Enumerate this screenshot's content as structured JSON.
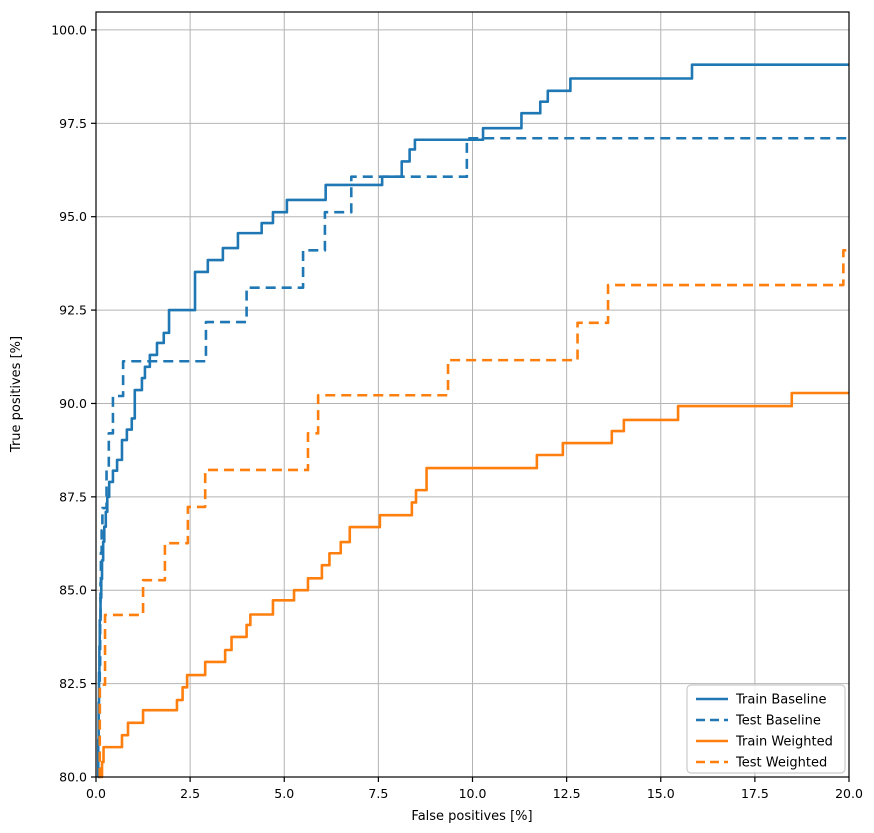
{
  "chart_data": {
    "type": "line",
    "subtype": "step-after-roc-curves",
    "title": "",
    "xlabel": "False positives [%]",
    "ylabel": "True positives [%]",
    "xlim": [
      0,
      20
    ],
    "ylim": [
      80,
      100.48
    ],
    "grid": true,
    "grid_color": "#b4b4b4",
    "spine_color": "#000000",
    "legend_position": "lower right",
    "xtick_values": [
      0,
      2.5,
      5,
      7.5,
      10,
      12.5,
      15,
      17.5,
      20
    ],
    "xtick_labels": [
      "0.0",
      "2.5",
      "5.0",
      "7.5",
      "10.0",
      "12.5",
      "15.0",
      "17.5",
      "20.0"
    ],
    "ytick_values": [
      80,
      82.5,
      85,
      87.5,
      90,
      92.5,
      95,
      97.5,
      100
    ],
    "ytick_labels": [
      "80.0",
      "82.5",
      "85.0",
      "87.5",
      "90.0",
      "92.5",
      "95.0",
      "97.5",
      "100.0"
    ],
    "series": [
      {
        "name": "Train Baseline",
        "color": "#1f77b4",
        "dash": "solid",
        "step_points": [
          [
            0.05,
            80.0
          ],
          [
            0.06,
            81.0
          ],
          [
            0.07,
            82.0
          ],
          [
            0.08,
            82.8
          ],
          [
            0.09,
            83.5
          ],
          [
            0.1,
            84.2
          ],
          [
            0.12,
            84.8
          ],
          [
            0.14,
            85.3
          ],
          [
            0.16,
            85.8
          ],
          [
            0.19,
            86.3
          ],
          [
            0.22,
            86.7
          ],
          [
            0.26,
            87.1
          ],
          [
            0.3,
            87.5
          ],
          [
            0.35,
            87.9
          ],
          [
            0.45,
            88.2
          ],
          [
            0.56,
            88.49
          ],
          [
            0.69,
            89.02
          ],
          [
            0.82,
            89.3
          ],
          [
            0.95,
            89.6
          ],
          [
            1.03,
            90.36
          ],
          [
            1.22,
            90.68
          ],
          [
            1.3,
            90.98
          ],
          [
            1.43,
            91.3
          ],
          [
            1.62,
            91.62
          ],
          [
            1.8,
            91.89
          ],
          [
            1.94,
            92.5
          ],
          [
            2.63,
            93.52
          ],
          [
            2.97,
            93.84
          ],
          [
            3.37,
            94.16
          ],
          [
            3.77,
            94.56
          ],
          [
            4.4,
            94.83
          ],
          [
            4.7,
            95.12
          ],
          [
            5.07,
            95.45
          ],
          [
            6.1,
            95.85
          ],
          [
            7.6,
            96.07
          ],
          [
            8.12,
            96.48
          ],
          [
            8.33,
            96.8
          ],
          [
            8.47,
            97.06
          ],
          [
            10.28,
            97.37
          ],
          [
            11.3,
            97.77
          ],
          [
            11.8,
            98.08
          ],
          [
            12.0,
            98.37
          ],
          [
            12.6,
            98.7
          ],
          [
            15.83,
            99.07
          ],
          [
            20.0,
            99.07
          ]
        ]
      },
      {
        "name": "Test Baseline",
        "color": "#1f77b4",
        "dash": "dashed",
        "step_points": [
          [
            0.08,
            80.0
          ],
          [
            0.09,
            81.5
          ],
          [
            0.1,
            83.0
          ],
          [
            0.11,
            84.2
          ],
          [
            0.12,
            85.2
          ],
          [
            0.13,
            86.0
          ],
          [
            0.15,
            86.6
          ],
          [
            0.17,
            87.2
          ],
          [
            0.28,
            88.3
          ],
          [
            0.34,
            89.2
          ],
          [
            0.45,
            90.2
          ],
          [
            0.72,
            91.13
          ],
          [
            2.92,
            92.18
          ],
          [
            4.0,
            93.1
          ],
          [
            5.5,
            94.1
          ],
          [
            6.08,
            95.12
          ],
          [
            6.78,
            96.07
          ],
          [
            9.85,
            97.1
          ],
          [
            20.0,
            97.1
          ]
        ]
      },
      {
        "name": "Train Weighted",
        "color": "#ff7f0e",
        "dash": "solid",
        "step_points": [
          [
            0.13,
            80.0
          ],
          [
            0.16,
            80.4
          ],
          [
            0.2,
            80.8
          ],
          [
            0.69,
            81.12
          ],
          [
            0.85,
            81.45
          ],
          [
            1.25,
            81.79
          ],
          [
            2.15,
            82.06
          ],
          [
            2.3,
            82.4
          ],
          [
            2.42,
            82.73
          ],
          [
            2.9,
            83.08
          ],
          [
            3.43,
            83.4
          ],
          [
            3.6,
            83.75
          ],
          [
            4.0,
            84.07
          ],
          [
            4.1,
            84.35
          ],
          [
            4.7,
            84.73
          ],
          [
            5.26,
            85.0
          ],
          [
            5.63,
            85.32
          ],
          [
            6.0,
            85.67
          ],
          [
            6.2,
            85.99
          ],
          [
            6.5,
            86.29
          ],
          [
            6.74,
            86.69
          ],
          [
            7.54,
            87.01
          ],
          [
            8.39,
            87.35
          ],
          [
            8.5,
            87.68
          ],
          [
            8.78,
            88.27
          ],
          [
            11.71,
            88.62
          ],
          [
            12.4,
            88.94
          ],
          [
            13.7,
            89.26
          ],
          [
            14.02,
            89.56
          ],
          [
            15.46,
            89.93
          ],
          [
            18.48,
            90.28
          ],
          [
            20.0,
            90.28
          ]
        ]
      },
      {
        "name": "Test Weighted",
        "color": "#ff7f0e",
        "dash": "dashed",
        "step_points": [
          [
            0.08,
            80.0
          ],
          [
            0.1,
            82.47
          ],
          [
            0.24,
            84.34
          ],
          [
            1.25,
            85.27
          ],
          [
            1.83,
            86.26
          ],
          [
            2.44,
            87.23
          ],
          [
            2.9,
            88.22
          ],
          [
            5.63,
            89.2
          ],
          [
            5.9,
            90.22
          ],
          [
            9.35,
            91.16
          ],
          [
            12.79,
            92.16
          ],
          [
            13.6,
            93.17
          ],
          [
            19.85,
            94.1
          ],
          [
            20.0,
            94.1
          ]
        ]
      }
    ],
    "legend_entries": [
      "Train Baseline",
      "Test Baseline",
      "Train Weighted",
      "Test Weighted"
    ]
  }
}
